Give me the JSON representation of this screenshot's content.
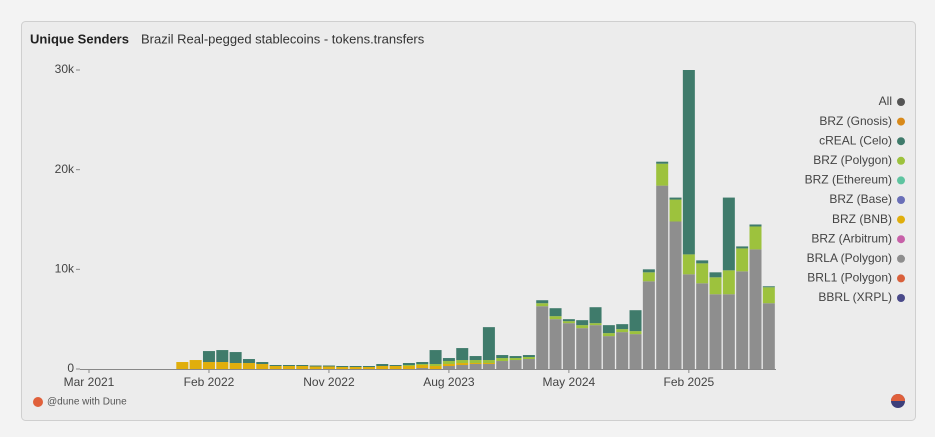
{
  "chart_data": {
    "type": "stacked-bar",
    "title": "Unique Senders",
    "subtitle": "Brazil Real-pegged stablecoins - tokens.transfers",
    "footer": "@dune with Dune",
    "categories": [
      "Mar 2021",
      null,
      null,
      null,
      null,
      null,
      null,
      null,
      null,
      "Feb 2022",
      null,
      null,
      null,
      null,
      null,
      null,
      null,
      null,
      "Nov 2022",
      null,
      null,
      null,
      null,
      null,
      null,
      null,
      null,
      "Aug 2023",
      null,
      null,
      null,
      null,
      null,
      null,
      null,
      null,
      "May 2024",
      null,
      null,
      null,
      null,
      null,
      null,
      null,
      null,
      "Feb 2025",
      null,
      null,
      null,
      null,
      null,
      null
    ],
    "ylim": [
      0,
      30000
    ],
    "yticks": [
      0,
      {
        "value": 10000,
        "label": "10k"
      },
      {
        "value": 20000,
        "label": "20k"
      },
      {
        "value": 30000,
        "label": "30k"
      }
    ],
    "series": [
      {
        "name": "All",
        "color": "#555555"
      },
      {
        "name": "BRZ (Gnosis)",
        "color": "#d98a1a"
      },
      {
        "name": "cREAL (Celo)",
        "color": "#3f7b6b",
        "values": [
          0,
          0,
          0,
          0,
          0,
          0,
          0,
          0,
          0,
          1100,
          1200,
          1100,
          400,
          200,
          100,
          100,
          100,
          100,
          100,
          100,
          100,
          100,
          200,
          100,
          200,
          200,
          1400,
          300,
          1200,
          400,
          3300,
          300,
          200,
          200,
          300,
          800,
          200,
          500,
          1600,
          800,
          500,
          2100,
          300,
          200,
          200,
          18500,
          300,
          500,
          7300,
          200,
          200,
          100
        ]
      },
      {
        "name": "BRZ (Polygon)",
        "color": "#9dc23d",
        "values": [
          0,
          0,
          0,
          0,
          0,
          0,
          0,
          0,
          0,
          0,
          0,
          0,
          0,
          0,
          0,
          0,
          0,
          0,
          0,
          0,
          0,
          0,
          0,
          0,
          100,
          100,
          200,
          300,
          300,
          300,
          300,
          300,
          200,
          200,
          300,
          300,
          200,
          300,
          200,
          300,
          300,
          300,
          900,
          2200,
          2200,
          2000,
          2000,
          1700,
          2400,
          2300,
          2300,
          1600
        ]
      },
      {
        "name": "BRZ (Ethereum)",
        "color": "#5ec4a0"
      },
      {
        "name": "BRZ (Base)",
        "color": "#6a6fb8"
      },
      {
        "name": "BRZ (BNB)",
        "color": "#e0ae0c",
        "values": [
          0,
          0,
          0,
          0,
          0,
          0,
          0,
          700,
          900,
          700,
          700,
          600,
          600,
          500,
          300,
          300,
          300,
          250,
          250,
          200,
          200,
          200,
          300,
          300,
          300,
          300,
          300,
          200,
          200,
          100,
          100,
          0,
          0,
          0,
          0,
          0,
          0,
          0,
          0,
          0,
          0,
          0,
          0,
          0,
          0,
          0,
          0,
          0,
          0,
          0,
          0,
          0
        ]
      },
      {
        "name": "BRZ (Arbitrum)",
        "color": "#c760a8"
      },
      {
        "name": "BRLA (Polygon)",
        "color": "#8e8e8e",
        "values": [
          0,
          0,
          0,
          0,
          0,
          0,
          0,
          0,
          0,
          0,
          0,
          0,
          0,
          0,
          0,
          0,
          0,
          0,
          0,
          0,
          0,
          0,
          0,
          0,
          0,
          100,
          0,
          300,
          400,
          500,
          500,
          800,
          900,
          1000,
          6300,
          5000,
          4600,
          4100,
          4400,
          3300,
          3700,
          3500,
          8800,
          18400,
          14800,
          9500,
          8600,
          7500,
          7500,
          9800,
          12000,
          6600
        ]
      },
      {
        "name": "BRL1 (Polygon)",
        "color": "#d9603b"
      },
      {
        "name": "BBRL (XRPL)",
        "color": "#4a4a8a"
      }
    ]
  }
}
